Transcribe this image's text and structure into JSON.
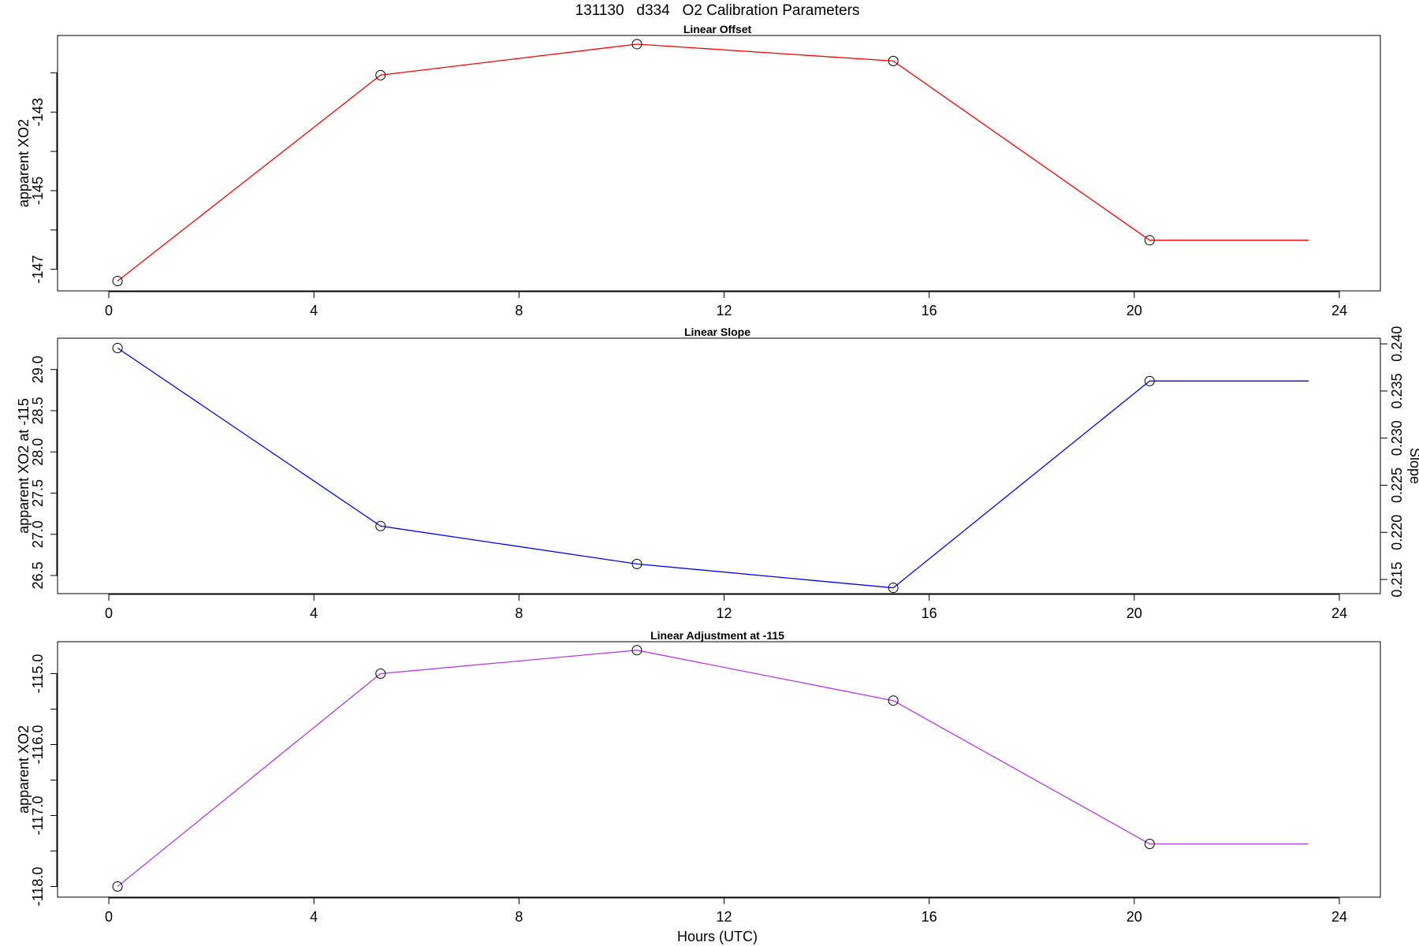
{
  "main_title": "131130   d334   O2 Calibration Parameters",
  "x_axis_label": "Hours (UTC)",
  "chart_data": [
    {
      "type": "line",
      "title": "Linear Offset",
      "xlabel": "",
      "ylabel": "apparent XO2",
      "xlim": [
        -1.0,
        24.8
      ],
      "ylim": [
        -147.55,
        -141.05
      ],
      "x_ticks": [
        0,
        4,
        8,
        12,
        16,
        20,
        24
      ],
      "x_tick_labels": [
        "0",
        "4",
        "8",
        "12",
        "16",
        "20",
        "24"
      ],
      "y_ticks": [
        -147,
        -146,
        -145,
        -144,
        -143,
        -142
      ],
      "y_tick_labels": [
        "-147",
        "",
        "-145",
        "",
        "-143",
        ""
      ],
      "line_color": "#ff0000",
      "series": [
        {
          "x": [
            0.17,
            5.3,
            10.3,
            15.3,
            20.3,
            23.4
          ],
          "y": [
            -147.3,
            -142.06,
            -141.27,
            -141.7,
            -146.26,
            -146.26
          ]
        }
      ],
      "markers_x": [
        0.17,
        5.3,
        10.3,
        15.3,
        20.3
      ],
      "markers_y": [
        -147.3,
        -142.06,
        -141.27,
        -141.7,
        -146.26
      ]
    },
    {
      "type": "line",
      "title": "Linear Slope",
      "xlabel": "",
      "ylabel": "apparent XO2 at -115",
      "ylabel_right": "Slope",
      "xlim": [
        -1.0,
        24.8
      ],
      "ylim": [
        26.28,
        29.38
      ],
      "ylim_right": [
        0.2135,
        0.2406
      ],
      "x_ticks": [
        0,
        4,
        8,
        12,
        16,
        20,
        24
      ],
      "x_tick_labels": [
        "0",
        "4",
        "8",
        "12",
        "16",
        "20",
        "24"
      ],
      "y_ticks": [
        26.5,
        27.0,
        27.5,
        28.0,
        28.5,
        29.0
      ],
      "y_tick_labels": [
        "26.5",
        "27.0",
        "27.5",
        "28.0",
        "28.5",
        "29.0"
      ],
      "y_ticks_right": [
        0.215,
        0.22,
        0.225,
        0.23,
        0.235,
        0.24
      ],
      "y_tick_labels_right": [
        "0.215",
        "0.220",
        "0.225",
        "0.230",
        "0.235",
        "0.240"
      ],
      "line_color": "#0000ff",
      "series": [
        {
          "x": [
            0.17,
            5.3,
            10.3,
            15.3,
            20.3,
            23.4
          ],
          "y": [
            29.26,
            27.1,
            26.64,
            26.35,
            28.86,
            28.86
          ]
        }
      ],
      "markers_x": [
        0.17,
        5.3,
        10.3,
        15.3,
        20.3
      ],
      "markers_y": [
        29.26,
        27.1,
        26.64,
        26.35,
        28.86
      ]
    },
    {
      "type": "line",
      "title": "Linear Adjustment at -115",
      "xlabel": "Hours (UTC)",
      "ylabel": "apparent XO2",
      "xlim": [
        -1.0,
        24.8
      ],
      "ylim": [
        -118.15,
        -114.55
      ],
      "x_ticks": [
        0,
        4,
        8,
        12,
        16,
        20,
        24
      ],
      "x_tick_labels": [
        "0",
        "4",
        "8",
        "12",
        "16",
        "20",
        "24"
      ],
      "y_ticks": [
        -118.0,
        -117.5,
        -117.0,
        -116.5,
        -116.0,
        -115.5,
        -115.0
      ],
      "y_tick_labels": [
        "-118.0",
        "",
        "-117.0",
        "",
        "-116.0",
        "",
        "-115.0"
      ],
      "line_color": "#b23aee",
      "series": [
        {
          "x": [
            0.17,
            5.3,
            10.3,
            15.3,
            20.3,
            23.4
          ],
          "y": [
            -118.0,
            -115.0,
            -114.67,
            -115.38,
            -117.4,
            -117.4
          ]
        }
      ],
      "markers_x": [
        0.17,
        5.3,
        10.3,
        15.3,
        20.3
      ],
      "markers_y": [
        -118.0,
        -115.0,
        -114.67,
        -115.38,
        -117.4
      ]
    }
  ]
}
